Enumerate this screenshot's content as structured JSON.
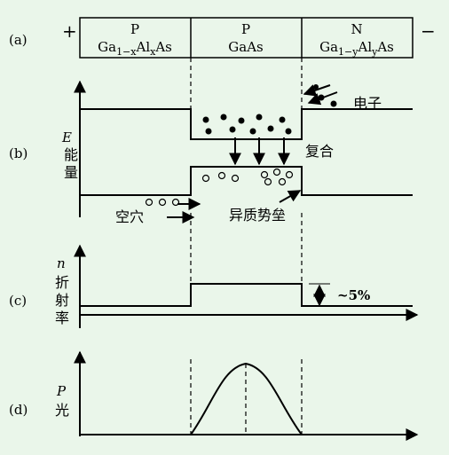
{
  "panel_a": {
    "label": "(a)",
    "plus": "+",
    "minus": "−",
    "layers": [
      {
        "type": "P",
        "formula": [
          "Ga",
          "1−x",
          "Al",
          "x",
          "As"
        ]
      },
      {
        "type": "P",
        "formula": [
          "GaAs"
        ]
      },
      {
        "type": "N",
        "formula": [
          "Ga",
          "1−y",
          "Al",
          "y",
          "As"
        ]
      }
    ]
  },
  "panel_b": {
    "label": "(b)",
    "axis_symbol": "E",
    "axis_chars": [
      "能",
      "量"
    ],
    "electrons": "电子",
    "recombination": "复合",
    "holes": "空穴",
    "barrier": "异质势垒"
  },
  "panel_c": {
    "label": "(c)",
    "axis_symbol": "n",
    "axis_chars": [
      "折",
      "射",
      "率"
    ],
    "step": "~5%"
  },
  "panel_d": {
    "label": "(d)",
    "axis_symbol": "P",
    "axis_chars": [
      "光"
    ]
  }
}
